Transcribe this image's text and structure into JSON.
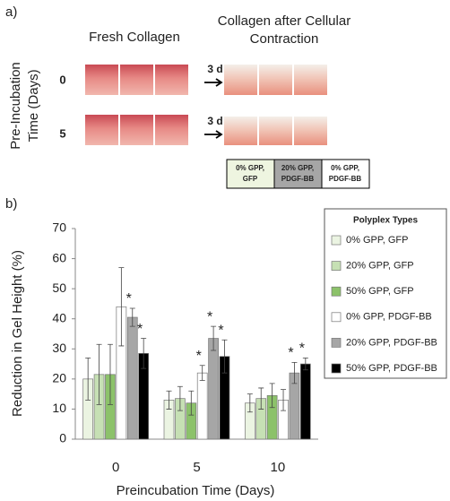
{
  "panel_a": {
    "label": "a)",
    "fresh_title": "Fresh Collagen",
    "contracted_title_lines": [
      "Collagen after Cellular",
      "Contraction"
    ],
    "row_axis_lines": [
      "Pre-Incubation",
      "Time (Days)"
    ],
    "rows": [
      {
        "label": "0",
        "arrow": "3 d"
      },
      {
        "label": "5",
        "arrow": "3 d"
      }
    ],
    "well_key": [
      [
        "0% GPP,",
        "GFP"
      ],
      [
        "20% GPP,",
        "PDGF-BB"
      ],
      [
        "0% GPP,",
        "PDGF-BB"
      ]
    ]
  },
  "chart_data": {
    "type": "bar",
    "panel_label": "b)",
    "x_label": "Preincubation Time (Days)",
    "y_label": "Reduction in Gel Height (%)",
    "legend_title": "Polyplex Types",
    "categories": [
      "0",
      "5",
      "10"
    ],
    "ylim": [
      0,
      70
    ],
    "yticks": [
      0,
      10,
      20,
      30,
      40,
      50,
      60,
      70
    ],
    "series": [
      {
        "name": "0% GPP, GFP",
        "color": "#ebf4e2",
        "values": [
          20,
          13,
          12
        ],
        "errors": [
          7,
          3,
          3
        ]
      },
      {
        "name": "20% GPP, GFP",
        "color": "#c6e0b4",
        "values": [
          21.5,
          13.5,
          13.5
        ],
        "errors": [
          10,
          4,
          3.5
        ]
      },
      {
        "name": "50% GPP, GFP",
        "color": "#8cc26a",
        "values": [
          21.5,
          12,
          14.5
        ],
        "errors": [
          10,
          4,
          4
        ]
      },
      {
        "name": "0% GPP, PDGF-BB",
        "color": "#ffffff",
        "values": [
          44,
          22,
          13
        ],
        "errors": [
          13,
          2.5,
          3.5
        ]
      },
      {
        "name": "20% GPP, PDGF-BB",
        "color": "#a6a6a6",
        "values": [
          40.5,
          33.5,
          22
        ],
        "errors": [
          3,
          4,
          3.5
        ]
      },
      {
        "name": "50% GPP, PDGF-BB",
        "color": "#000000",
        "values": [
          28.5,
          27.5,
          25
        ],
        "errors": [
          5,
          5.5,
          2
        ]
      }
    ],
    "annotations": [
      {
        "text": "*",
        "category": "0",
        "series": "20% GPP, PDGF-BB"
      },
      {
        "text": "*",
        "category": "0",
        "series": "50% GPP, PDGF-BB"
      },
      {
        "text": "*",
        "category": "5",
        "series": "0% GPP, PDGF-BB"
      },
      {
        "text": "*",
        "category": "5",
        "series": "20% GPP, PDGF-BB"
      },
      {
        "text": "*",
        "category": "5",
        "series": "50% GPP, PDGF-BB"
      },
      {
        "text": "*",
        "category": "10",
        "series": "20% GPP, PDGF-BB"
      },
      {
        "text": "*",
        "category": "10",
        "series": "50% GPP, PDGF-BB"
      }
    ]
  }
}
